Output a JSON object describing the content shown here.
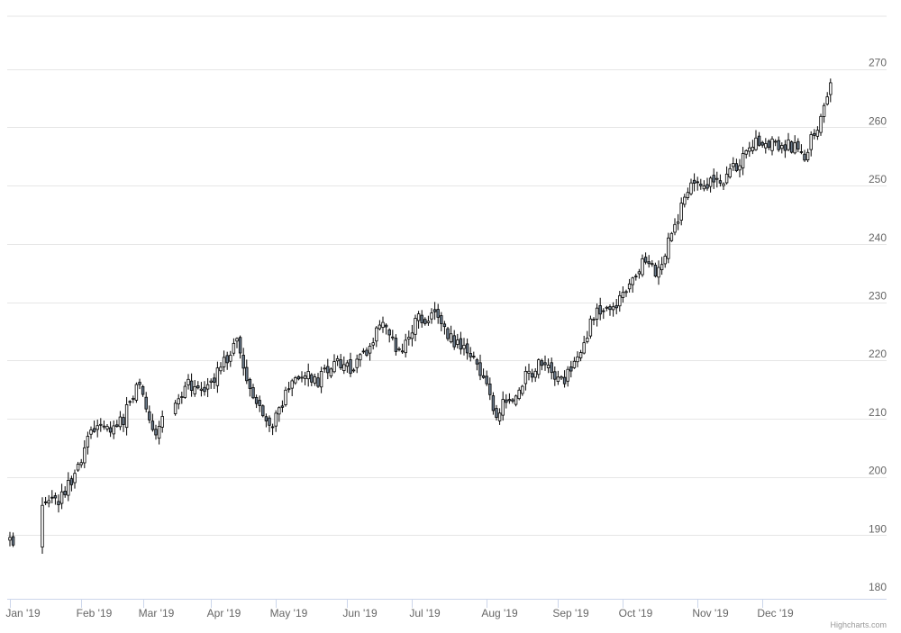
{
  "chart_data": {
    "type": "candlestick",
    "title": "",
    "xlabel": "",
    "ylabel": "",
    "ylim": [
      180,
      270
    ],
    "y_ticks": [
      180,
      190,
      200,
      210,
      220,
      230,
      240,
      250,
      260,
      270
    ],
    "x_ticks": [
      "Jan '19",
      "Feb '19",
      "Mar '19",
      "Apr '19",
      "May '19",
      "Jun '19",
      "Jul '19",
      "Aug '19",
      "Sep '19",
      "Oct '19",
      "Nov '19",
      "Dec '19"
    ],
    "grid": true,
    "legend": "none",
    "colors": {
      "up": "#ffffff",
      "down": "#6b7b8c",
      "stroke": "#000000",
      "grid": "#e6e6e6",
      "axis": "#ccd6eb"
    },
    "gaps": [
      [
        1,
        10
      ],
      [
        47,
        51
      ]
    ],
    "anchors": [
      [
        0,
        188.5
      ],
      [
        5,
        188.0
      ],
      [
        10,
        195.2
      ],
      [
        15,
        196.0
      ],
      [
        20,
        200.5
      ],
      [
        25,
        207.5
      ],
      [
        30,
        208.2
      ],
      [
        35,
        210.0
      ],
      [
        40,
        216.0
      ],
      [
        45,
        207.0
      ],
      [
        50,
        213.0
      ],
      [
        55,
        216.0
      ],
      [
        60,
        215.0
      ],
      [
        65,
        218.5
      ],
      [
        70,
        223.0
      ],
      [
        75,
        214.0
      ],
      [
        80,
        208.0
      ],
      [
        85,
        214.0
      ],
      [
        90,
        218.0
      ],
      [
        95,
        216.5
      ],
      [
        100,
        219.5
      ],
      [
        105,
        218.5
      ],
      [
        110,
        222.0
      ],
      [
        115,
        226.0
      ],
      [
        120,
        221.0
      ],
      [
        125,
        226.5
      ],
      [
        130,
        228.0
      ],
      [
        135,
        224.0
      ],
      [
        140,
        221.5
      ],
      [
        145,
        218.0
      ],
      [
        150,
        211.0
      ],
      [
        155,
        214.0
      ],
      [
        160,
        218.0
      ],
      [
        165,
        219.5
      ],
      [
        170,
        216.0
      ],
      [
        175,
        220.0
      ],
      [
        180,
        228.0
      ],
      [
        185,
        229.0
      ],
      [
        190,
        232.0
      ],
      [
        195,
        237.0
      ],
      [
        200,
        235.0
      ],
      [
        205,
        243.5
      ],
      [
        210,
        249.5
      ],
      [
        215,
        250.0
      ],
      [
        220,
        250.5
      ],
      [
        225,
        254.5
      ],
      [
        230,
        257.0
      ],
      [
        235,
        257.5
      ],
      [
        240,
        257.0
      ],
      [
        245,
        255.5
      ],
      [
        250,
        261.0
      ],
      [
        253,
        266.5
      ]
    ]
  },
  "credits": "Highcharts.com"
}
